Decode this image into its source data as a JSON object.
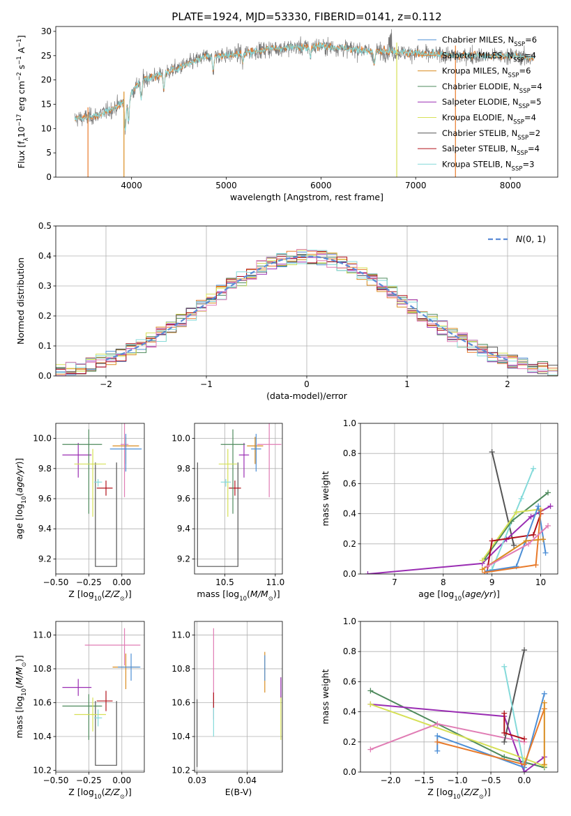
{
  "figure_title": "PLATE=1924, MJD=53330, FIBERID=0141, z=0.112",
  "colors": {
    "chab_miles": "#4d8fd6",
    "salp_miles": "#e87a2a",
    "krou_miles": "#d98c1f",
    "chab_elodie": "#4e8a5c",
    "salp_elodie": "#9a2db3",
    "krou_elodie": "#d6e056",
    "chab_stelib": "#555555",
    "salp_stelib": "#b0101a",
    "krou_stelib": "#84dada",
    "pink": "#e07cb4",
    "gauss": "#5b8bd6"
  },
  "chart_data": [
    {
      "id": "spectrum",
      "type": "line",
      "title": "PLATE=1924, MJD=53330, FIBERID=0141, z=0.112",
      "xlabel": "wavelength [Angstrom, rest frame]",
      "ylabel": "Flux [f_λ 10^-17 erg cm^-2 s^-1 A^-1]",
      "xlim": [
        3200,
        8500
      ],
      "ylim": [
        0,
        31
      ],
      "xticks": [
        4000,
        5000,
        6000,
        7000,
        8000
      ],
      "yticks": [
        0,
        5,
        10,
        15,
        20,
        25,
        30
      ],
      "legend": [
        {
          "label": "Chabrier MILES, N",
          "sub": "SSP",
          "tail": "=6",
          "color": "#4d8fd6"
        },
        {
          "label": "Salpeter MILES, N",
          "sub": "SSP",
          "tail": "=4",
          "color": "#e87a2a"
        },
        {
          "label": "Kroupa MILES, N",
          "sub": "SSP",
          "tail": "=6",
          "color": "#d98c1f"
        },
        {
          "label": "Chabrier ELODIE, N",
          "sub": "SSP",
          "tail": "=4",
          "color": "#4e8a5c"
        },
        {
          "label": "Salpeter ELODIE, N",
          "sub": "SSP",
          "tail": "=5",
          "color": "#9a2db3"
        },
        {
          "label": "Kroupa ELODIE, N",
          "sub": "SSP",
          "tail": "=4",
          "color": "#d6e056"
        },
        {
          "label": "Chabrier STELIB, N",
          "sub": "SSP",
          "tail": "=2",
          "color": "#555555"
        },
        {
          "label": "Salpeter STELIB, N",
          "sub": "SSP",
          "tail": "=4",
          "color": "#b0101a"
        },
        {
          "label": "Kroupa STELIB, N",
          "sub": "SSP",
          "tail": "=3",
          "color": "#84dada"
        }
      ],
      "continuum": [
        [
          3400,
          12
        ],
        [
          3600,
          12.5
        ],
        [
          3800,
          14
        ],
        [
          3950,
          16
        ],
        [
          4100,
          20
        ],
        [
          4300,
          21
        ],
        [
          4500,
          22.5
        ],
        [
          4800,
          25
        ],
        [
          5000,
          25
        ],
        [
          5500,
          26.5
        ],
        [
          6000,
          27
        ],
        [
          6500,
          26
        ],
        [
          7000,
          25.5
        ],
        [
          7500,
          25
        ],
        [
          8000,
          25
        ],
        [
          8200,
          24.5
        ]
      ],
      "cutoffs": [
        {
          "wave": 3540,
          "color": "#e87a2a"
        },
        {
          "wave": 3920,
          "color": "#d98c1f"
        },
        {
          "wave": 6800,
          "color": "#d6e056"
        },
        {
          "wave": 7420,
          "color": "#e87a2a"
        }
      ]
    },
    {
      "id": "residuals",
      "type": "line",
      "xlabel": "(data-model)/error",
      "ylabel": "Normed distribution",
      "xlim": [
        -2.5,
        2.5
      ],
      "ylim": [
        0,
        0.5
      ],
      "xticks": [
        -2,
        -1,
        0,
        1,
        2
      ],
      "yticks": [
        0.0,
        0.1,
        0.2,
        0.3,
        0.4,
        0.5
      ],
      "legend": {
        "label": "N(0, 1)"
      },
      "bin_width": 0.1
    },
    {
      "id": "age_vs_Z",
      "type": "scatter",
      "xlabel": "Z [log10(Z/Z☉)]",
      "ylabel": "age [log10(age/yr)]",
      "xlim": [
        -0.5,
        0.17
      ],
      "ylim": [
        9.1,
        10.1
      ],
      "xticks": [
        -0.5,
        -0.25,
        0.0
      ],
      "xticklabels": [
        "−0.50",
        "−0.25",
        "0.00"
      ],
      "yticks": [
        9.2,
        9.4,
        9.6,
        9.8,
        10.0
      ],
      "points": [
        {
          "x": -0.12,
          "xerr": [
            0.07,
            0.05
          ],
          "y": 9.67,
          "yerr": [
            0.05,
            0.05
          ],
          "color": "#b0101a"
        },
        {
          "x": -0.33,
          "xerr": [
            0.12,
            0.1
          ],
          "y": 9.89,
          "yerr": [
            0.15,
            0.08
          ],
          "color": "#9a2db3"
        },
        {
          "x": -0.25,
          "xerr": [
            0.2,
            0.1
          ],
          "y": 9.96,
          "yerr": [
            0.46,
            0.1
          ],
          "color": "#4e8a5c"
        },
        {
          "x": -0.22,
          "xerr": [
            0.14,
            0.1
          ],
          "y": 9.83,
          "yerr": [
            0.35,
            0.1
          ],
          "color": "#d6e056"
        },
        {
          "x": -0.18,
          "xerr": [
            0.03,
            0.03
          ],
          "y": 9.71,
          "yerr": [
            0.03,
            0.02
          ],
          "color": "#84dada"
        },
        {
          "x": 0.02,
          "xerr": [
            0.03,
            0.03
          ],
          "y": 9.96,
          "yerr": [
            0.35,
            0.14
          ],
          "color": "#e07cb4"
        },
        {
          "x": 0.03,
          "xerr": [
            0.1,
            0.1
          ],
          "y": 9.95,
          "yerr": [
            0.12,
            0.06
          ],
          "color": "#d98c1f"
        },
        {
          "x": 0.03,
          "xerr": [
            0.12,
            0.12
          ],
          "y": 9.93,
          "yerr": [
            0.15,
            0.1
          ],
          "color": "#4d8fd6"
        }
      ],
      "bracket": {
        "x1": -0.2,
        "x2": -0.04,
        "y1": 9.15,
        "y2": 9.84,
        "color": "#555555"
      }
    },
    {
      "id": "age_vs_mass",
      "type": "scatter",
      "xlabel": "mass [log10(M/M☉)]",
      "ylabel": "",
      "xlim": [
        10.2,
        11.07
      ],
      "ylim": [
        9.1,
        10.1
      ],
      "xticks": [
        10.5,
        11.0
      ],
      "yticks": [
        9.2,
        9.4,
        9.6,
        9.8,
        10.0
      ],
      "points": [
        {
          "x": 10.6,
          "xerr": [
            0.06,
            0.06
          ],
          "y": 9.67,
          "yerr": [
            0.05,
            0.05
          ],
          "color": "#b0101a"
        },
        {
          "x": 10.69,
          "xerr": [
            0.05,
            0.05
          ],
          "y": 9.89,
          "yerr": [
            0.15,
            0.08
          ],
          "color": "#9a2db3"
        },
        {
          "x": 10.58,
          "xerr": [
            0.12,
            0.12
          ],
          "y": 9.96,
          "yerr": [
            0.46,
            0.1
          ],
          "color": "#4e8a5c"
        },
        {
          "x": 10.53,
          "xerr": [
            0.09,
            0.09
          ],
          "y": 9.83,
          "yerr": [
            0.35,
            0.1
          ],
          "color": "#d6e056"
        },
        {
          "x": 10.51,
          "xerr": [
            0.05,
            0.05
          ],
          "y": 9.71,
          "yerr": [
            0.03,
            0.02
          ],
          "color": "#84dada"
        },
        {
          "x": 10.94,
          "xerr": [
            0.12,
            0.12
          ],
          "y": 9.96,
          "yerr": [
            0.35,
            0.14
          ],
          "color": "#e07cb4"
        },
        {
          "x": 10.8,
          "xerr": [
            0.08,
            0.08
          ],
          "y": 9.95,
          "yerr": [
            0.12,
            0.06
          ],
          "color": "#d98c1f"
        },
        {
          "x": 10.81,
          "xerr": [
            0.05,
            0.05
          ],
          "y": 9.93,
          "yerr": [
            0.15,
            0.1
          ],
          "color": "#4d8fd6"
        }
      ],
      "bracket": {
        "x1": 10.23,
        "x2": 10.63,
        "y1": 9.15,
        "y2": 9.84,
        "color": "#555555"
      }
    },
    {
      "id": "massweight_vs_age",
      "type": "line",
      "xlabel": "age [log10(age/yr)]",
      "ylabel": "mass weight",
      "xlim": [
        6.3,
        10.35
      ],
      "ylim": [
        0,
        1.0
      ],
      "xticks": [
        7,
        8,
        9,
        10
      ],
      "yticks": [
        0.0,
        0.2,
        0.4,
        0.6,
        0.8,
        1.0
      ],
      "series": [
        {
          "color": "#555555",
          "x": [
            9.0,
            9.45
          ],
          "y": [
            0.81,
            0.19
          ]
        },
        {
          "color": "#9a2db3",
          "x": [
            6.45,
            8.8,
            9.3,
            9.8,
            10.2
          ],
          "y": [
            0.0,
            0.07,
            0.23,
            0.38,
            0.45
          ]
        },
        {
          "color": "#84dada",
          "x": [
            9.0,
            9.6,
            9.85
          ],
          "y": [
            0.03,
            0.5,
            0.7
          ]
        },
        {
          "color": "#4e8a5c",
          "x": [
            8.85,
            9.4,
            10.15
          ],
          "y": [
            0.1,
            0.35,
            0.54
          ]
        },
        {
          "color": "#d6e056",
          "x": [
            8.8,
            9.5,
            10.0
          ],
          "y": [
            0.09,
            0.41,
            0.43
          ]
        },
        {
          "color": "#b0101a",
          "x": [
            8.9,
            9.0,
            9.85,
            10.0
          ],
          "y": [
            0.02,
            0.22,
            0.26,
            0.4
          ]
        },
        {
          "color": "#4d8fd6",
          "x": [
            8.9,
            9.5,
            9.95,
            10.1
          ],
          "y": [
            0.02,
            0.05,
            0.45,
            0.14
          ]
        },
        {
          "color": "#e87a2a",
          "x": [
            8.85,
            9.9,
            10.0
          ],
          "y": [
            0.01,
            0.06,
            0.42
          ]
        },
        {
          "color": "#d98c1f",
          "x": [
            8.8,
            9.7,
            10.05
          ],
          "y": [
            0.03,
            0.22,
            0.23
          ]
        },
        {
          "color": "#e07cb4",
          "x": [
            8.9,
            9.75,
            10.15
          ],
          "y": [
            0.05,
            0.2,
            0.32
          ]
        }
      ]
    },
    {
      "id": "mass_vs_Z",
      "type": "scatter",
      "xlabel": "Z [log10(Z/Z☉)]",
      "ylabel": "mass [log10(M/M☉)]",
      "xlim": [
        -0.5,
        0.17
      ],
      "ylim": [
        10.19,
        11.08
      ],
      "xticks": [
        -0.5,
        -0.25,
        0.0
      ],
      "xticklabels": [
        "−0.50",
        "−0.25",
        "0.00"
      ],
      "yticks": [
        10.2,
        10.4,
        10.6,
        10.8,
        11.0
      ],
      "points": [
        {
          "x": -0.12,
          "xerr": [
            0.07,
            0.05
          ],
          "y": 10.61,
          "yerr": [
            0.06,
            0.06
          ],
          "color": "#b0101a"
        },
        {
          "x": -0.33,
          "xerr": [
            0.12,
            0.1
          ],
          "y": 10.69,
          "yerr": [
            0.05,
            0.05
          ],
          "color": "#9a2db3"
        },
        {
          "x": -0.25,
          "xerr": [
            0.2,
            0.1
          ],
          "y": 10.58,
          "yerr": [
            0.2,
            0.07
          ],
          "color": "#4e8a5c"
        },
        {
          "x": -0.22,
          "xerr": [
            0.14,
            0.1
          ],
          "y": 10.53,
          "yerr": [
            0.1,
            0.1
          ],
          "color": "#d6e056"
        },
        {
          "x": -0.18,
          "xerr": [
            0.03,
            0.03
          ],
          "y": 10.51,
          "yerr": [
            0.05,
            0.05
          ],
          "color": "#84dada"
        },
        {
          "x": 0.02,
          "xerr": [
            0.3,
            0.12
          ],
          "y": 10.94,
          "yerr": [
            0.12,
            0.1
          ],
          "color": "#e07cb4"
        },
        {
          "x": 0.03,
          "xerr": [
            0.1,
            0.1
          ],
          "y": 10.81,
          "yerr": [
            0.13,
            0.08
          ],
          "color": "#d98c1f"
        },
        {
          "x": 0.07,
          "xerr": [
            0.1,
            0.07
          ],
          "y": 10.81,
          "yerr": [
            0.08,
            0.08
          ],
          "color": "#4d8fd6"
        }
      ],
      "bracket": {
        "x1": -0.2,
        "x2": -0.04,
        "y1": 10.23,
        "y2": 10.61,
        "color": "#555555"
      }
    },
    {
      "id": "mass_vs_ebv",
      "type": "scatter",
      "xlabel": "E(B-V)",
      "ylabel": "",
      "xlim": [
        0.0295,
        0.047
      ],
      "ylim": [
        10.19,
        11.08
      ],
      "xticks": [
        0.03,
        0.04
      ],
      "yticks": [
        10.2,
        10.4,
        10.6,
        10.8,
        11.0
      ],
      "vlines": [
        {
          "x": 0.03,
          "y1": 10.22,
          "y2": 10.62,
          "color": "#555555"
        },
        {
          "x": 0.0333,
          "y1": 10.5,
          "y2": 11.04,
          "color": "#e07cb4"
        },
        {
          "x": 0.0333,
          "y1": 10.4,
          "y2": 10.62,
          "color": "#84dada"
        },
        {
          "x": 0.0333,
          "y1": 10.57,
          "y2": 10.66,
          "color": "#b0101a"
        },
        {
          "x": 0.0435,
          "y1": 10.66,
          "y2": 10.9,
          "color": "#d98c1f"
        },
        {
          "x": 0.0435,
          "y1": 10.73,
          "y2": 10.88,
          "color": "#4d8fd6"
        },
        {
          "x": 0.0467,
          "y1": 10.38,
          "y2": 10.64,
          "color": "#d6e056"
        },
        {
          "x": 0.0467,
          "y1": 10.63,
          "y2": 10.75,
          "color": "#9a2db3"
        }
      ]
    },
    {
      "id": "massweight_vs_Z",
      "type": "line",
      "xlabel": "Z [log10(Z/Z☉)]",
      "ylabel": "mass weight",
      "xlim": [
        -2.45,
        0.5
      ],
      "ylim": [
        0,
        1.0
      ],
      "xticks": [
        -2.0,
        -1.5,
        -1.0,
        -0.5,
        0.0
      ],
      "yticks": [
        0.0,
        0.2,
        0.4,
        0.6,
        0.8,
        1.0
      ],
      "series": [
        {
          "color": "#4e8a5c",
          "x": [
            -2.3,
            -0.3,
            0.3
          ],
          "y": [
            0.54,
            0.1,
            0.03
          ]
        },
        {
          "color": "#9a2db3",
          "x": [
            -2.3,
            -0.3,
            0.0,
            0.3
          ],
          "y": [
            0.45,
            0.37,
            0.0,
            0.1
          ]
        },
        {
          "color": "#d6e056",
          "x": [
            -2.3,
            0.0,
            0.3
          ],
          "y": [
            0.45,
            0.09,
            0.04
          ]
        },
        {
          "color": "#e07cb4",
          "x": [
            -2.3,
            -1.3,
            0.0
          ],
          "y": [
            0.15,
            0.32,
            0.2
          ]
        },
        {
          "color": "#555555",
          "x": [
            -0.3,
            0.0
          ],
          "y": [
            0.2,
            0.81
          ]
        },
        {
          "color": "#84dada",
          "x": [
            -0.3,
            0.0
          ],
          "y": [
            0.7,
            0.03
          ]
        },
        {
          "color": "#b0101a",
          "x": [
            -0.3,
            -0.3,
            0.0
          ],
          "y": [
            0.39,
            0.26,
            0.22
          ]
        },
        {
          "color": "#4d8fd6",
          "x": [
            -1.3,
            -1.3,
            0.0,
            0.3
          ],
          "y": [
            0.14,
            0.24,
            0.03,
            0.52
          ]
        },
        {
          "color": "#e87a2a",
          "x": [
            -1.3,
            0.0,
            0.3
          ],
          "y": [
            0.2,
            0.05,
            0.42
          ]
        },
        {
          "color": "#d98c1f",
          "x": [
            0.3,
            0.3
          ],
          "y": [
            0.05,
            0.46
          ]
        }
      ]
    }
  ]
}
